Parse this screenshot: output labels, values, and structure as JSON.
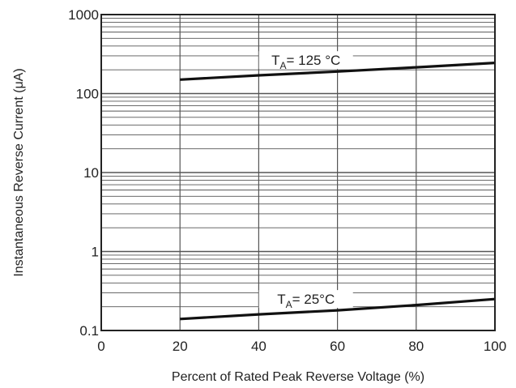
{
  "chart_data": {
    "type": "line",
    "title": "",
    "xlabel": "Percent of Rated Peak Reverse Voltage (%)",
    "ylabel": "Instantaneous Reverse Current (μA)",
    "xlim": [
      0,
      100
    ],
    "ylim": [
      0.1,
      1000
    ],
    "yscale": "log",
    "grid": true,
    "x_ticks": [
      0,
      20,
      40,
      60,
      80,
      100
    ],
    "x_tick_labels": [
      "0",
      "20",
      "40",
      "60",
      "80",
      "100"
    ],
    "y_ticks": [
      0.1,
      1,
      10,
      100,
      1000
    ],
    "y_tick_labels": [
      "0.1",
      "1",
      "10",
      "100",
      "1000"
    ],
    "series": [
      {
        "label_main": "T",
        "label_sub": "A",
        "label_rest": "= 125 °C",
        "x": [
          20,
          40,
          60,
          80,
          100
        ],
        "y": [
          150,
          170,
          190,
          215,
          245
        ]
      },
      {
        "label_main": "T",
        "label_sub": "A",
        "label_rest": "= 25°C",
        "x": [
          20,
          40,
          60,
          80,
          100
        ],
        "y": [
          0.14,
          0.16,
          0.18,
          0.21,
          0.25
        ]
      }
    ],
    "line_color": "#111111",
    "grid_color": "#555555"
  }
}
